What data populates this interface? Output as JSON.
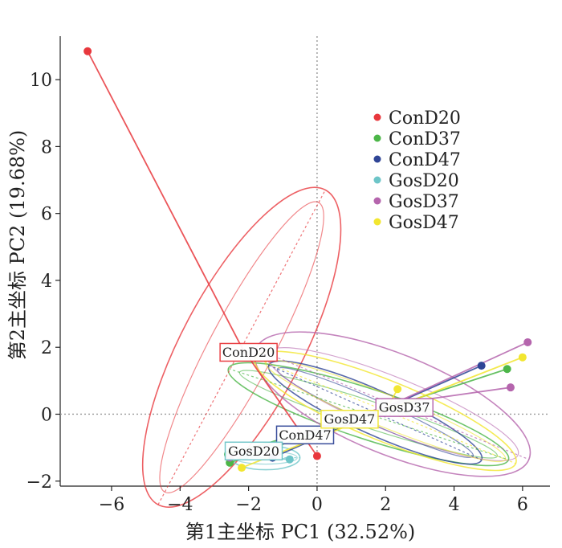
{
  "chart_data": {
    "type": "scatter",
    "xlabel": "第1主坐标  PC1 (32.52%)",
    "ylabel": "第2主坐标  PC2 (19.68%)",
    "xlim": [
      -7.5,
      6.8
    ],
    "ylim": [
      -2.15,
      11.3
    ],
    "xticks": [
      -6,
      -4,
      -2,
      0,
      2,
      4,
      6
    ],
    "yticks": [
      -2,
      0,
      2,
      4,
      6,
      8,
      10
    ],
    "reference_lines": {
      "x": 0,
      "y": 0
    },
    "legend_position": "top-right",
    "series": [
      {
        "name": "ConD20",
        "color": "#e8383d",
        "points": [
          [
            -6.7,
            10.85
          ],
          [
            0.0,
            -1.25
          ]
        ],
        "ellipse": {
          "cx": -2.2,
          "cy": 2.0,
          "rx": 5.2,
          "ry": 0.6,
          "angle": -62
        },
        "label": "ConD20",
        "label_pos": [
          -2.0,
          1.85
        ]
      },
      {
        "name": "ConD37",
        "color": "#4cb648",
        "points": [
          [
            -2.6,
            -1.2
          ],
          [
            -2.55,
            -1.45
          ],
          [
            5.55,
            1.35
          ]
        ],
        "ellipse": {
          "cx": 1.5,
          "cy": 0.0,
          "rx": 4.3,
          "ry": 0.25,
          "angle": 18
        },
        "label": "",
        "label_pos": null
      },
      {
        "name": "ConD47",
        "color": "#2f4596",
        "points": [
          [
            -1.3,
            -1.3
          ],
          [
            4.8,
            1.45
          ]
        ],
        "ellipse": {
          "cx": 1.7,
          "cy": 0.05,
          "rx": 3.4,
          "ry": 0.22,
          "angle": 24
        },
        "label": "ConD47",
        "label_pos": [
          -0.35,
          -0.62
        ]
      },
      {
        "name": "GosD20",
        "color": "#6dc5c8",
        "points": [
          [
            -2.1,
            -1.25
          ],
          [
            -0.8,
            -1.35
          ]
        ],
        "ellipse": {
          "cx": -1.5,
          "cy": -1.3,
          "rx": 1.0,
          "ry": 0.12,
          "angle": 0
        },
        "label": "GosD20",
        "label_pos": [
          -1.85,
          -1.1
        ]
      },
      {
        "name": "GosD37",
        "color": "#b565ad",
        "points": [
          [
            6.15,
            2.15
          ],
          [
            5.65,
            0.8
          ],
          [
            -2.55,
            -1.3
          ]
        ],
        "ellipse": {
          "cx": 2.2,
          "cy": 0.3,
          "rx": 4.3,
          "ry": 0.5,
          "angle": 22
        },
        "label": "GosD37",
        "label_pos": [
          2.55,
          0.2
        ]
      },
      {
        "name": "GosD47",
        "color": "#f2e630",
        "points": [
          [
            6.0,
            1.7
          ],
          [
            2.35,
            0.75
          ],
          [
            -2.2,
            -1.6
          ]
        ],
        "ellipse": {
          "cx": 2.0,
          "cy": 0.1,
          "rx": 4.1,
          "ry": 0.3,
          "angle": 22
        },
        "label": "GosD47",
        "label_pos": [
          0.95,
          -0.15
        ]
      }
    ]
  }
}
